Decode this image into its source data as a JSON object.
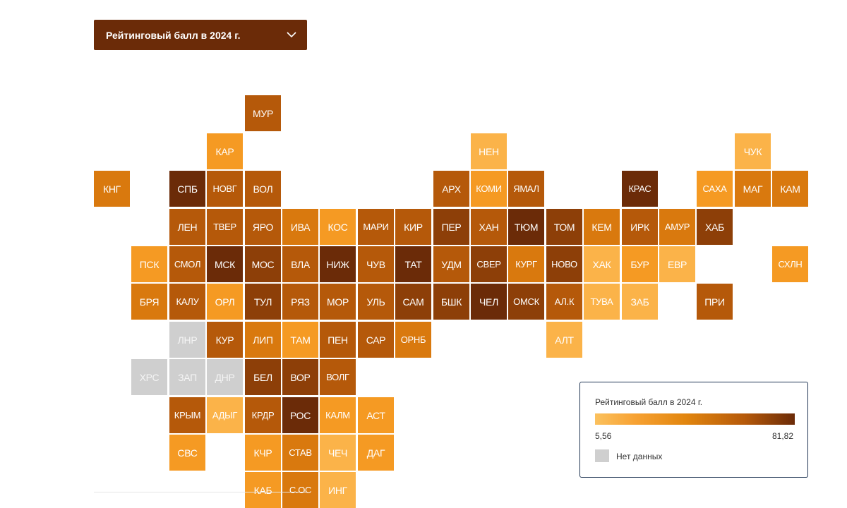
{
  "dropdown": {
    "label": "Рейтинговый балл в 2024 г."
  },
  "legend": {
    "title": "Рейтинговый балл в 2024 г.",
    "min": "5,56",
    "max": "81,82",
    "no_data_label": "Нет данных",
    "no_data_color": "#cfcfcf"
  },
  "colors": {
    "dark": "#6b2b08",
    "medium_dark": "#8d3f08",
    "medium": "#b5590a",
    "orange": "#d9790e",
    "light_orange": "#f59a23",
    "light": "#fbb349",
    "no_data": "#cfcfcf"
  },
  "regions": [
    {
      "code": "МУР",
      "row": 1,
      "col": 4,
      "shade": "medium"
    },
    {
      "code": "КАР",
      "row": 2,
      "col": 3,
      "shade": "light_orange"
    },
    {
      "code": "НЕН",
      "row": 2,
      "col": 10,
      "shade": "light"
    },
    {
      "code": "ЧУК",
      "row": 2,
      "col": 17,
      "shade": "light"
    },
    {
      "code": "КНГ",
      "row": 3,
      "col": 0,
      "shade": "orange"
    },
    {
      "code": "СПБ",
      "row": 3,
      "col": 2,
      "shade": "dark"
    },
    {
      "code": "НОВГ",
      "row": 3,
      "col": 3,
      "shade": "medium"
    },
    {
      "code": "ВОЛ",
      "row": 3,
      "col": 4,
      "shade": "medium"
    },
    {
      "code": "АРХ",
      "row": 3,
      "col": 9,
      "shade": "medium"
    },
    {
      "code": "КОМИ",
      "row": 3,
      "col": 10,
      "shade": "light_orange"
    },
    {
      "code": "ЯМАЛ",
      "row": 3,
      "col": 11,
      "shade": "medium"
    },
    {
      "code": "КРАС",
      "row": 3,
      "col": 14,
      "shade": "dark"
    },
    {
      "code": "САХА",
      "row": 3,
      "col": 16,
      "shade": "light_orange"
    },
    {
      "code": "МАГ",
      "row": 3,
      "col": 17,
      "shade": "orange"
    },
    {
      "code": "КАМ",
      "row": 3,
      "col": 18,
      "shade": "orange"
    },
    {
      "code": "ЛЕН",
      "row": 4,
      "col": 2,
      "shade": "medium"
    },
    {
      "code": "ТВЕР",
      "row": 4,
      "col": 3,
      "shade": "medium"
    },
    {
      "code": "ЯРО",
      "row": 4,
      "col": 4,
      "shade": "medium"
    },
    {
      "code": "ИВА",
      "row": 4,
      "col": 5,
      "shade": "orange"
    },
    {
      "code": "КОС",
      "row": 4,
      "col": 6,
      "shade": "light_orange"
    },
    {
      "code": "МАРИ",
      "row": 4,
      "col": 7,
      "shade": "medium"
    },
    {
      "code": "КИР",
      "row": 4,
      "col": 8,
      "shade": "medium"
    },
    {
      "code": "ПЕР",
      "row": 4,
      "col": 9,
      "shade": "medium_dark"
    },
    {
      "code": "ХАН",
      "row": 4,
      "col": 10,
      "shade": "medium"
    },
    {
      "code": "ТЮМ",
      "row": 4,
      "col": 11,
      "shade": "dark"
    },
    {
      "code": "ТОМ",
      "row": 4,
      "col": 12,
      "shade": "medium_dark"
    },
    {
      "code": "КЕМ",
      "row": 4,
      "col": 13,
      "shade": "orange"
    },
    {
      "code": "ИРК",
      "row": 4,
      "col": 14,
      "shade": "medium"
    },
    {
      "code": "АМУР",
      "row": 4,
      "col": 15,
      "shade": "orange"
    },
    {
      "code": "ХАБ",
      "row": 4,
      "col": 16,
      "shade": "medium_dark"
    },
    {
      "code": "ПСК",
      "row": 5,
      "col": 1,
      "shade": "light_orange"
    },
    {
      "code": "СМОЛ",
      "row": 5,
      "col": 2,
      "shade": "medium"
    },
    {
      "code": "МСК",
      "row": 5,
      "col": 3,
      "shade": "dark"
    },
    {
      "code": "МОС",
      "row": 5,
      "col": 4,
      "shade": "medium_dark"
    },
    {
      "code": "ВЛА",
      "row": 5,
      "col": 5,
      "shade": "medium"
    },
    {
      "code": "НИЖ",
      "row": 5,
      "col": 6,
      "shade": "dark"
    },
    {
      "code": "ЧУВ",
      "row": 5,
      "col": 7,
      "shade": "medium"
    },
    {
      "code": "ТАТ",
      "row": 5,
      "col": 8,
      "shade": "dark"
    },
    {
      "code": "УДМ",
      "row": 5,
      "col": 9,
      "shade": "medium"
    },
    {
      "code": "СВЕР",
      "row": 5,
      "col": 10,
      "shade": "medium_dark"
    },
    {
      "code": "КУРГ",
      "row": 5,
      "col": 11,
      "shade": "orange"
    },
    {
      "code": "НОВО",
      "row": 5,
      "col": 12,
      "shade": "medium_dark"
    },
    {
      "code": "ХАК",
      "row": 5,
      "col": 13,
      "shade": "light"
    },
    {
      "code": "БУР",
      "row": 5,
      "col": 14,
      "shade": "light_orange"
    },
    {
      "code": "ЕВР",
      "row": 5,
      "col": 15,
      "shade": "light"
    },
    {
      "code": "СХЛН",
      "row": 5,
      "col": 18,
      "shade": "light_orange"
    },
    {
      "code": "БРЯ",
      "row": 6,
      "col": 1,
      "shade": "orange"
    },
    {
      "code": "КАЛУ",
      "row": 6,
      "col": 2,
      "shade": "medium"
    },
    {
      "code": "ОРЛ",
      "row": 6,
      "col": 3,
      "shade": "light_orange"
    },
    {
      "code": "ТУЛ",
      "row": 6,
      "col": 4,
      "shade": "medium_dark"
    },
    {
      "code": "РЯЗ",
      "row": 6,
      "col": 5,
      "shade": "medium"
    },
    {
      "code": "МОР",
      "row": 6,
      "col": 6,
      "shade": "medium"
    },
    {
      "code": "УЛЬ",
      "row": 6,
      "col": 7,
      "shade": "medium"
    },
    {
      "code": "САМ",
      "row": 6,
      "col": 8,
      "shade": "medium_dark"
    },
    {
      "code": "БШК",
      "row": 6,
      "col": 9,
      "shade": "medium_dark"
    },
    {
      "code": "ЧЕЛ",
      "row": 6,
      "col": 10,
      "shade": "dark"
    },
    {
      "code": "ОМСК",
      "row": 6,
      "col": 11,
      "shade": "medium_dark"
    },
    {
      "code": "АЛ.К",
      "row": 6,
      "col": 12,
      "shade": "medium"
    },
    {
      "code": "ТУВА",
      "row": 6,
      "col": 13,
      "shade": "light"
    },
    {
      "code": "ЗАБ",
      "row": 6,
      "col": 14,
      "shade": "light"
    },
    {
      "code": "ПРИ",
      "row": 6,
      "col": 16,
      "shade": "medium"
    },
    {
      "code": "ЛНР",
      "row": 7,
      "col": 2,
      "shade": "no_data"
    },
    {
      "code": "КУР",
      "row": 7,
      "col": 3,
      "shade": "medium"
    },
    {
      "code": "ЛИП",
      "row": 7,
      "col": 4,
      "shade": "orange"
    },
    {
      "code": "ТАМ",
      "row": 7,
      "col": 5,
      "shade": "light_orange"
    },
    {
      "code": "ПЕН",
      "row": 7,
      "col": 6,
      "shade": "medium"
    },
    {
      "code": "САР",
      "row": 7,
      "col": 7,
      "shade": "medium"
    },
    {
      "code": "ОРНБ",
      "row": 7,
      "col": 8,
      "shade": "orange"
    },
    {
      "code": "АЛТ",
      "row": 7,
      "col": 12,
      "shade": "light"
    },
    {
      "code": "ХРС",
      "row": 8,
      "col": 1,
      "shade": "no_data"
    },
    {
      "code": "ЗАП",
      "row": 8,
      "col": 2,
      "shade": "no_data"
    },
    {
      "code": "ДНР",
      "row": 8,
      "col": 3,
      "shade": "no_data"
    },
    {
      "code": "БЕЛ",
      "row": 8,
      "col": 4,
      "shade": "medium_dark"
    },
    {
      "code": "ВОР",
      "row": 8,
      "col": 5,
      "shade": "medium_dark"
    },
    {
      "code": "ВОЛГ",
      "row": 8,
      "col": 6,
      "shade": "medium"
    },
    {
      "code": "КРЫМ",
      "row": 9,
      "col": 2,
      "shade": "medium"
    },
    {
      "code": "АДЫГ",
      "row": 9,
      "col": 3,
      "shade": "light"
    },
    {
      "code": "КРДР",
      "row": 9,
      "col": 4,
      "shade": "medium"
    },
    {
      "code": "РОС",
      "row": 9,
      "col": 5,
      "shade": "dark"
    },
    {
      "code": "КАЛМ",
      "row": 9,
      "col": 6,
      "shade": "light_orange"
    },
    {
      "code": "АСТ",
      "row": 9,
      "col": 7,
      "shade": "light_orange"
    },
    {
      "code": "СВС",
      "row": 10,
      "col": 2,
      "shade": "light_orange"
    },
    {
      "code": "КЧР",
      "row": 10,
      "col": 4,
      "shade": "light_orange"
    },
    {
      "code": "СТАВ",
      "row": 10,
      "col": 5,
      "shade": "orange"
    },
    {
      "code": "ЧЕЧ",
      "row": 10,
      "col": 6,
      "shade": "light"
    },
    {
      "code": "ДАГ",
      "row": 10,
      "col": 7,
      "shade": "light_orange"
    },
    {
      "code": "КАБ",
      "row": 11,
      "col": 4,
      "shade": "light_orange"
    },
    {
      "code": "С.ОС",
      "row": 11,
      "col": 5,
      "shade": "orange"
    },
    {
      "code": "ИНГ",
      "row": 11,
      "col": 6,
      "shade": "light"
    }
  ]
}
